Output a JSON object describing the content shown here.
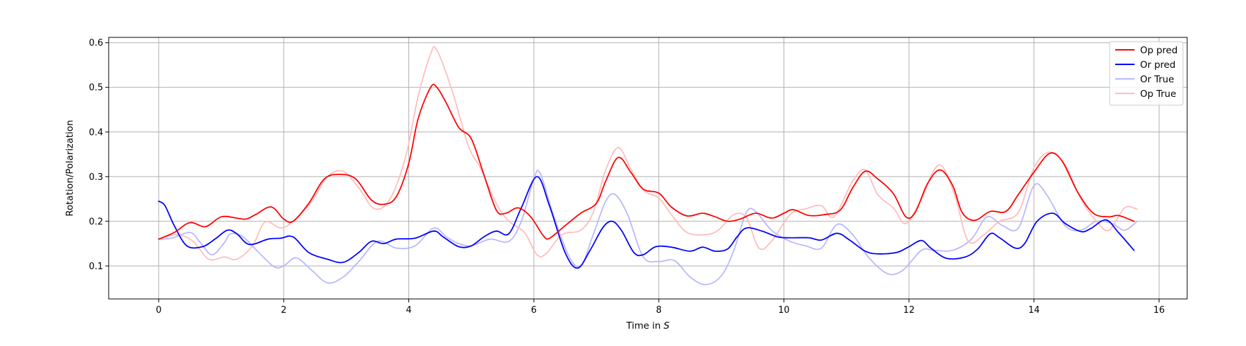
{
  "chart_data": {
    "type": "line",
    "title": "",
    "xlabel": "Time in ",
    "xlabel_unit": "S",
    "ylabel": "Rotation/Polarization",
    "xlim": [
      -0.8,
      16.45
    ],
    "ylim": [
      0.026,
      0.612
    ],
    "xticks": [
      0,
      2,
      4,
      6,
      8,
      10,
      12,
      14,
      16
    ],
    "yticks": [
      0.1,
      0.2,
      0.3,
      0.4,
      0.5,
      0.6
    ],
    "grid": true,
    "legend_position": "top-right",
    "series": [
      {
        "name": "Op pred",
        "color": "#ff0000",
        "opacity": 1,
        "points": [
          [
            0,
            0.16
          ],
          [
            0.25,
            0.175
          ],
          [
            0.5,
            0.197
          ],
          [
            0.75,
            0.188
          ],
          [
            1.0,
            0.21
          ],
          [
            1.25,
            0.207
          ],
          [
            1.4,
            0.205
          ],
          [
            1.55,
            0.215
          ],
          [
            1.8,
            0.232
          ],
          [
            2.0,
            0.205
          ],
          [
            2.15,
            0.2
          ],
          [
            2.4,
            0.24
          ],
          [
            2.65,
            0.295
          ],
          [
            2.9,
            0.305
          ],
          [
            3.15,
            0.295
          ],
          [
            3.4,
            0.248
          ],
          [
            3.6,
            0.238
          ],
          [
            3.8,
            0.255
          ],
          [
            4.0,
            0.33
          ],
          [
            4.15,
            0.43
          ],
          [
            4.35,
            0.5
          ],
          [
            4.45,
            0.5
          ],
          [
            4.6,
            0.465
          ],
          [
            4.8,
            0.41
          ],
          [
            5.0,
            0.385
          ],
          [
            5.2,
            0.305
          ],
          [
            5.4,
            0.225
          ],
          [
            5.55,
            0.218
          ],
          [
            5.75,
            0.23
          ],
          [
            5.95,
            0.21
          ],
          [
            6.15,
            0.168
          ],
          [
            6.25,
            0.162
          ],
          [
            6.5,
            0.19
          ],
          [
            6.75,
            0.218
          ],
          [
            7.0,
            0.24
          ],
          [
            7.15,
            0.29
          ],
          [
            7.35,
            0.343
          ],
          [
            7.55,
            0.31
          ],
          [
            7.75,
            0.272
          ],
          [
            8.0,
            0.263
          ],
          [
            8.2,
            0.232
          ],
          [
            8.45,
            0.212
          ],
          [
            8.7,
            0.218
          ],
          [
            8.9,
            0.21
          ],
          [
            9.1,
            0.2
          ],
          [
            9.3,
            0.205
          ],
          [
            9.55,
            0.218
          ],
          [
            9.8,
            0.207
          ],
          [
            10.0,
            0.218
          ],
          [
            10.15,
            0.226
          ],
          [
            10.4,
            0.213
          ],
          [
            10.65,
            0.215
          ],
          [
            10.9,
            0.225
          ],
          [
            11.1,
            0.275
          ],
          [
            11.3,
            0.312
          ],
          [
            11.5,
            0.295
          ],
          [
            11.75,
            0.262
          ],
          [
            11.95,
            0.21
          ],
          [
            12.1,
            0.22
          ],
          [
            12.3,
            0.285
          ],
          [
            12.5,
            0.315
          ],
          [
            12.7,
            0.28
          ],
          [
            12.85,
            0.22
          ],
          [
            13.05,
            0.202
          ],
          [
            13.3,
            0.222
          ],
          [
            13.55,
            0.222
          ],
          [
            13.75,
            0.26
          ],
          [
            14.0,
            0.31
          ],
          [
            14.25,
            0.352
          ],
          [
            14.45,
            0.335
          ],
          [
            14.7,
            0.265
          ],
          [
            14.95,
            0.218
          ],
          [
            15.2,
            0.21
          ],
          [
            15.35,
            0.213
          ],
          [
            15.6,
            0.2
          ]
        ]
      },
      {
        "name": "Or pred",
        "color": "#0000ff",
        "opacity": 1,
        "points": [
          [
            0,
            0.245
          ],
          [
            0.1,
            0.235
          ],
          [
            0.25,
            0.19
          ],
          [
            0.45,
            0.145
          ],
          [
            0.7,
            0.143
          ],
          [
            0.9,
            0.16
          ],
          [
            1.1,
            0.18
          ],
          [
            1.25,
            0.172
          ],
          [
            1.45,
            0.148
          ],
          [
            1.75,
            0.16
          ],
          [
            1.95,
            0.162
          ],
          [
            2.15,
            0.165
          ],
          [
            2.4,
            0.13
          ],
          [
            2.7,
            0.115
          ],
          [
            2.95,
            0.108
          ],
          [
            3.2,
            0.13
          ],
          [
            3.4,
            0.155
          ],
          [
            3.6,
            0.15
          ],
          [
            3.8,
            0.16
          ],
          [
            4.1,
            0.162
          ],
          [
            4.4,
            0.178
          ],
          [
            4.55,
            0.165
          ],
          [
            4.8,
            0.143
          ],
          [
            5.0,
            0.145
          ],
          [
            5.2,
            0.165
          ],
          [
            5.4,
            0.178
          ],
          [
            5.6,
            0.172
          ],
          [
            5.8,
            0.23
          ],
          [
            6.05,
            0.3
          ],
          [
            6.25,
            0.235
          ],
          [
            6.5,
            0.13
          ],
          [
            6.7,
            0.095
          ],
          [
            6.9,
            0.135
          ],
          [
            7.1,
            0.185
          ],
          [
            7.25,
            0.2
          ],
          [
            7.4,
            0.18
          ],
          [
            7.6,
            0.13
          ],
          [
            7.75,
            0.125
          ],
          [
            7.95,
            0.143
          ],
          [
            8.2,
            0.142
          ],
          [
            8.5,
            0.133
          ],
          [
            8.7,
            0.142
          ],
          [
            8.9,
            0.133
          ],
          [
            9.1,
            0.138
          ],
          [
            9.25,
            0.165
          ],
          [
            9.4,
            0.185
          ],
          [
            9.65,
            0.178
          ],
          [
            9.9,
            0.165
          ],
          [
            10.1,
            0.163
          ],
          [
            10.4,
            0.163
          ],
          [
            10.6,
            0.158
          ],
          [
            10.85,
            0.173
          ],
          [
            11.05,
            0.158
          ],
          [
            11.3,
            0.133
          ],
          [
            11.5,
            0.127
          ],
          [
            11.8,
            0.13
          ],
          [
            12.0,
            0.143
          ],
          [
            12.2,
            0.157
          ],
          [
            12.35,
            0.14
          ],
          [
            12.6,
            0.117
          ],
          [
            12.9,
            0.12
          ],
          [
            13.1,
            0.138
          ],
          [
            13.3,
            0.172
          ],
          [
            13.45,
            0.163
          ],
          [
            13.7,
            0.14
          ],
          [
            13.85,
            0.15
          ],
          [
            14.05,
            0.2
          ],
          [
            14.3,
            0.218
          ],
          [
            14.5,
            0.195
          ],
          [
            14.75,
            0.177
          ],
          [
            14.9,
            0.183
          ],
          [
            15.15,
            0.203
          ],
          [
            15.35,
            0.175
          ],
          [
            15.6,
            0.135
          ]
        ]
      },
      {
        "name": "Or True",
        "color": "#b8b8ff",
        "opacity": 1,
        "points": [
          [
            0,
            0.16
          ],
          [
            0.2,
            0.162
          ],
          [
            0.5,
            0.175
          ],
          [
            0.65,
            0.155
          ],
          [
            0.85,
            0.125
          ],
          [
            1.05,
            0.152
          ],
          [
            1.15,
            0.172
          ],
          [
            1.35,
            0.165
          ],
          [
            1.6,
            0.13
          ],
          [
            1.85,
            0.098
          ],
          [
            2.0,
            0.1
          ],
          [
            2.2,
            0.118
          ],
          [
            2.45,
            0.09
          ],
          [
            2.7,
            0.062
          ],
          [
            2.95,
            0.075
          ],
          [
            3.2,
            0.11
          ],
          [
            3.5,
            0.155
          ],
          [
            3.8,
            0.14
          ],
          [
            4.1,
            0.145
          ],
          [
            4.4,
            0.185
          ],
          [
            4.6,
            0.165
          ],
          [
            4.8,
            0.15
          ],
          [
            5.0,
            0.145
          ],
          [
            5.3,
            0.16
          ],
          [
            5.6,
            0.155
          ],
          [
            5.8,
            0.2
          ],
          [
            6.0,
            0.295
          ],
          [
            6.1,
            0.308
          ],
          [
            6.3,
            0.22
          ],
          [
            6.55,
            0.125
          ],
          [
            6.75,
            0.1
          ],
          [
            6.95,
            0.17
          ],
          [
            7.15,
            0.245
          ],
          [
            7.3,
            0.26
          ],
          [
            7.5,
            0.215
          ],
          [
            7.75,
            0.12
          ],
          [
            8.0,
            0.11
          ],
          [
            8.25,
            0.112
          ],
          [
            8.5,
            0.075
          ],
          [
            8.75,
            0.058
          ],
          [
            9.0,
            0.078
          ],
          [
            9.2,
            0.135
          ],
          [
            9.4,
            0.22
          ],
          [
            9.55,
            0.222
          ],
          [
            9.8,
            0.18
          ],
          [
            10.1,
            0.155
          ],
          [
            10.35,
            0.145
          ],
          [
            10.6,
            0.14
          ],
          [
            10.85,
            0.193
          ],
          [
            11.1,
            0.17
          ],
          [
            11.35,
            0.12
          ],
          [
            11.65,
            0.083
          ],
          [
            11.9,
            0.09
          ],
          [
            12.2,
            0.135
          ],
          [
            12.4,
            0.135
          ],
          [
            12.7,
            0.135
          ],
          [
            13.0,
            0.16
          ],
          [
            13.25,
            0.21
          ],
          [
            13.5,
            0.19
          ],
          [
            13.75,
            0.185
          ],
          [
            14.0,
            0.28
          ],
          [
            14.2,
            0.26
          ],
          [
            14.5,
            0.19
          ],
          [
            14.75,
            0.18
          ],
          [
            15.0,
            0.2
          ],
          [
            15.25,
            0.195
          ],
          [
            15.45,
            0.18
          ],
          [
            15.65,
            0.2
          ]
        ]
      },
      {
        "name": "Op True",
        "color": "#ffbdbd",
        "opacity": 1,
        "points": [
          [
            0,
            0.16
          ],
          [
            0.3,
            0.17
          ],
          [
            0.55,
            0.155
          ],
          [
            0.8,
            0.115
          ],
          [
            1.05,
            0.12
          ],
          [
            1.25,
            0.115
          ],
          [
            1.5,
            0.145
          ],
          [
            1.7,
            0.198
          ],
          [
            1.95,
            0.185
          ],
          [
            2.15,
            0.2
          ],
          [
            2.45,
            0.245
          ],
          [
            2.7,
            0.3
          ],
          [
            2.95,
            0.312
          ],
          [
            3.2,
            0.275
          ],
          [
            3.45,
            0.228
          ],
          [
            3.7,
            0.25
          ],
          [
            3.95,
            0.345
          ],
          [
            4.15,
            0.48
          ],
          [
            4.35,
            0.575
          ],
          [
            4.45,
            0.583
          ],
          [
            4.7,
            0.49
          ],
          [
            4.95,
            0.37
          ],
          [
            5.15,
            0.318
          ],
          [
            5.4,
            0.24
          ],
          [
            5.6,
            0.2
          ],
          [
            5.85,
            0.175
          ],
          [
            6.05,
            0.125
          ],
          [
            6.2,
            0.128
          ],
          [
            6.45,
            0.17
          ],
          [
            6.75,
            0.18
          ],
          [
            6.95,
            0.22
          ],
          [
            7.15,
            0.315
          ],
          [
            7.35,
            0.365
          ],
          [
            7.55,
            0.318
          ],
          [
            7.75,
            0.27
          ],
          [
            8.0,
            0.252
          ],
          [
            8.2,
            0.215
          ],
          [
            8.45,
            0.175
          ],
          [
            8.75,
            0.17
          ],
          [
            8.95,
            0.18
          ],
          [
            9.2,
            0.215
          ],
          [
            9.4,
            0.208
          ],
          [
            9.6,
            0.14
          ],
          [
            9.8,
            0.155
          ],
          [
            10.1,
            0.215
          ],
          [
            10.35,
            0.228
          ],
          [
            10.6,
            0.235
          ],
          [
            10.8,
            0.21
          ],
          [
            11.1,
            0.29
          ],
          [
            11.3,
            0.315
          ],
          [
            11.5,
            0.26
          ],
          [
            11.75,
            0.23
          ],
          [
            11.95,
            0.195
          ],
          [
            12.2,
            0.25
          ],
          [
            12.4,
            0.315
          ],
          [
            12.55,
            0.32
          ],
          [
            12.75,
            0.25
          ],
          [
            12.95,
            0.155
          ],
          [
            13.2,
            0.17
          ],
          [
            13.45,
            0.2
          ],
          [
            13.75,
            0.22
          ],
          [
            14.0,
            0.32
          ],
          [
            14.25,
            0.355
          ],
          [
            14.5,
            0.325
          ],
          [
            14.75,
            0.25
          ],
          [
            15.0,
            0.2
          ],
          [
            15.2,
            0.18
          ],
          [
            15.45,
            0.23
          ],
          [
            15.65,
            0.227
          ]
        ]
      }
    ]
  },
  "legend": {
    "items": [
      {
        "label": "Op pred",
        "color": "#ff0000"
      },
      {
        "label": "Or pred",
        "color": "#0000ff"
      },
      {
        "label": "Or True",
        "color": "#b8b8ff"
      },
      {
        "label": "Op True",
        "color": "#ffbdbd"
      }
    ]
  }
}
